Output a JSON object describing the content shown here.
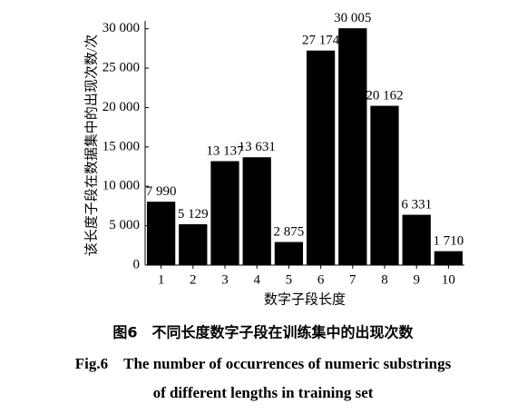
{
  "chart_data": {
    "type": "bar",
    "y_label": "该长度子段在数据集中的出现次数/次",
    "x_label": "数字子段长度",
    "caption": [
      "图6　不同长度数字子段在训练集中的出现次数",
      "Fig.6　The number of occurrences of numeric substrings",
      "of different lengths in training set"
    ],
    "categories": [
      "1",
      "2",
      "3",
      "4",
      "5",
      "6",
      "7",
      "8",
      "9",
      "10"
    ],
    "values": [
      7990,
      5129,
      13137,
      13631,
      2875,
      27174,
      30005,
      20162,
      6331,
      1710
    ],
    "value_labels": [
      "7 990",
      "5 129",
      "13 137",
      "13 631",
      "2 875",
      "27 174",
      "30 005",
      "20 162",
      "6 331",
      "1 710"
    ],
    "color": "#000000",
    "ylim": [
      0,
      31000
    ],
    "yticks": [
      0,
      {
        "value": 5000,
        "label": "5 000"
      },
      {
        "value": 10000,
        "label": "10 000"
      },
      {
        "value": 15000,
        "label": "15 000"
      },
      {
        "value": 20000,
        "label": "20 000"
      },
      {
        "value": 25000,
        "label": "25 000"
      },
      {
        "value": 30000,
        "label": "30 000"
      }
    ],
    "grid": false
  }
}
